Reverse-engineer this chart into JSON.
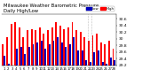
{
  "title": "Milwaukee Weather Barometric Pressure",
  "subtitle": "Daily High/Low",
  "legend_blue": "Low",
  "legend_red": "High",
  "ylim": [
    29.2,
    30.75
  ],
  "yticks": [
    29.2,
    29.4,
    29.6,
    29.8,
    30.0,
    30.2,
    30.4,
    30.6
  ],
  "ytick_labels": [
    "29.2",
    "29.4",
    "29.6",
    "29.8",
    "30",
    "30.2",
    "30.4",
    "30.6"
  ],
  "color_high": "#ff0000",
  "color_low": "#0000bb",
  "background": "#ffffff",
  "num_days": 28,
  "highs": [
    29.85,
    30.05,
    30.45,
    30.5,
    30.35,
    30.05,
    30.25,
    30.3,
    30.25,
    30.35,
    30.15,
    30.25,
    30.35,
    30.5,
    30.4,
    30.3,
    30.35,
    30.5,
    30.25,
    30.2,
    30.05,
    29.95,
    30.1,
    30.15,
    29.9,
    29.85,
    29.95,
    29.7
  ],
  "lows": [
    29.5,
    29.25,
    29.1,
    29.7,
    29.75,
    29.55,
    29.75,
    29.85,
    29.9,
    29.95,
    29.7,
    29.85,
    29.95,
    30.05,
    29.9,
    29.75,
    29.85,
    30.05,
    29.65,
    29.65,
    29.35,
    29.3,
    29.6,
    29.65,
    29.3,
    29.25,
    29.45,
    29.35
  ],
  "xlabels": [
    "1",
    "2",
    "3",
    "4",
    "5",
    "6",
    "7",
    "8",
    "9",
    "10",
    "11",
    "12",
    "13",
    "14",
    "15",
    "16",
    "17",
    "18",
    "19",
    "20",
    "21",
    "22",
    "23",
    "24",
    "25",
    "26",
    "27",
    "28"
  ],
  "bar_width": 0.42,
  "dotted_vlines": [
    20.5,
    21.5
  ],
  "ylabel_fontsize": 3.2,
  "xlabel_fontsize": 2.8,
  "title_fontsize": 3.8,
  "legend_fontsize": 2.8
}
